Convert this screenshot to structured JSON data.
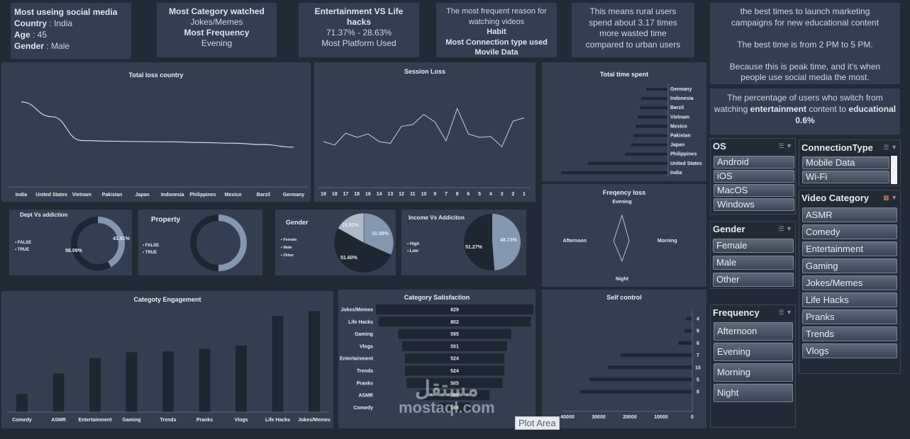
{
  "kpis": {
    "k1": {
      "l1": "Most  useing social media",
      "l2a": "Country",
      "l2b": ": India",
      "l3a": "Age",
      "l3b": ": 45",
      "l4a": "Gender",
      "l4b": ": Male"
    },
    "k2": {
      "l1": "Most Category watched",
      "l2": "Jokes/Memes",
      "l3": "Most Frequency",
      "l4": "Evening"
    },
    "k3": {
      "l1": "Entertainment VS Life",
      "l2": "hacks",
      "l3": "71.37% - 28.63%",
      "l4": "Most Platform Used"
    },
    "k4": {
      "l1": "The most frequent reason for",
      "l2": "watching videos",
      "l3": "Habit",
      "l4": "Most Connection type used",
      "l5": "Movile Data"
    },
    "k5": {
      "l1": "This means rural users",
      "l2": "spend about 3.17 times",
      "l3": "more wasted time",
      "l4": "compared to urban users"
    },
    "k6": {
      "l1": "the best times to launch marketing",
      "l2": "campaigns for new educational content",
      "l3": "The best time is from 2 PM to 5 PM.",
      "l4": "Because this is peak time, and it's when",
      "l5": "people use social media the most."
    },
    "k7": {
      "l1": "The percentage of users who switch from",
      "l2a": "watching",
      "l2b": "entertainment",
      "l2c": "content to",
      "l2d": "educational",
      "l3": "0.6%"
    }
  },
  "charts": {
    "loss_country": {
      "title": "Total loss country",
      "type": "line",
      "categories": [
        "India",
        "United States",
        "Vietnam",
        "Pakistan",
        "Japan",
        "Indonesia",
        "Philippines",
        "Mexico",
        "Barzil",
        "Germany"
      ],
      "values": [
        100,
        78,
        42,
        41,
        40.5,
        40,
        39,
        38,
        36,
        32
      ]
    },
    "session_loss": {
      "title": "Session Loss",
      "type": "line",
      "categories": [
        "19",
        "18",
        "17",
        "18",
        "16",
        "14",
        "13",
        "12",
        "11",
        "10",
        "9",
        "7",
        "8",
        "6",
        "5",
        "4",
        "3",
        "2",
        "1"
      ],
      "values": [
        40,
        36,
        50,
        45,
        49,
        40,
        38,
        58,
        60,
        72,
        63,
        41,
        79,
        49,
        45,
        46,
        34,
        64,
        68
      ]
    },
    "time_spent": {
      "title": "Total time spent",
      "type": "bar",
      "categories": [
        "Germany",
        "Indonesia",
        "Barzil",
        "Vietnam",
        "Mexico",
        "Pakistan",
        "Japan",
        "Philippines",
        "United States",
        "India"
      ],
      "values": [
        20,
        25,
        26,
        28,
        30,
        32,
        34,
        40,
        75,
        100
      ]
    },
    "freq_loss": {
      "title": "Freqency loss",
      "type": "radar",
      "categories": [
        "Evening",
        "Morning",
        "Night",
        "Afternoon"
      ],
      "values": [
        100,
        28,
        80,
        33
      ]
    },
    "dept": {
      "title": "Dept Vs addiction",
      "type": "pie",
      "legend": [
        "FALSE",
        "TRUE"
      ],
      "values": [
        41.91,
        58.09
      ],
      "labels": [
        "41.91%",
        "58.09%"
      ]
    },
    "property": {
      "title": "Property",
      "type": "pie",
      "legend": [
        "FALSE",
        "TRUE"
      ],
      "values": [
        50,
        50
      ]
    },
    "gender": {
      "title": "Gender",
      "type": "pie",
      "legend": [
        "Female",
        "Male",
        "Other"
      ],
      "values": [
        31.58,
        51.6,
        16.82
      ],
      "labels": [
        "31.58%",
        "51.60%",
        "16.82%"
      ]
    },
    "income": {
      "title": "Income Vs Addiciton",
      "type": "pie",
      "legend": [
        "High",
        "Low"
      ],
      "values": [
        48.73,
        51.27
      ],
      "labels": [
        "48.73%",
        "51.27%"
      ]
    },
    "cat_engagement": {
      "title": "Categoty Engagement",
      "type": "bar",
      "categories": [
        "Comedy",
        "ASMR",
        "Entertainment",
        "Gaming",
        "Trends",
        "Pranks",
        "Vlogs",
        "Life Hacks",
        "Jokes/Memes"
      ],
      "values": [
        22,
        47,
        66,
        73,
        74,
        77,
        81,
        117,
        123
      ]
    },
    "cat_satisfaction": {
      "title": "Category Satisfaction",
      "type": "bar",
      "categories": [
        "Jokes/Memes",
        "Life Hacks",
        "Gaming",
        "Vlogs",
        "Entertainment",
        "Trends",
        "Pranks",
        "ASMR",
        "Comedy"
      ],
      "values": [
        829,
        802,
        595,
        551,
        524,
        524,
        505,
        368,
        166
      ],
      "labels": [
        "829",
        "802",
        "595",
        "551",
        "524",
        "524",
        "505",
        "368",
        "166"
      ]
    },
    "self_control": {
      "title": "Self control",
      "type": "bar",
      "categories": [
        "4",
        "9",
        "6",
        "7",
        "10",
        "5",
        "8"
      ],
      "values": [
        2000,
        2500,
        4500,
        23000,
        27000,
        33000,
        36000
      ],
      "ticks": [
        "40000",
        "30000",
        "20000",
        "10000",
        "0"
      ]
    }
  },
  "slicers": {
    "os": {
      "title": "OS",
      "items": [
        "Android",
        "iOS",
        "MacOS",
        "Windows"
      ]
    },
    "conn": {
      "title": "ConnectionType",
      "items": [
        "Mobile Data",
        "Wi-Fi"
      ]
    },
    "gender": {
      "title": "Gender",
      "items": [
        "Female",
        "Male",
        "Other"
      ]
    },
    "video": {
      "title": "Video Category",
      "items": [
        "ASMR",
        "Comedy",
        "Entertainment",
        "Gaming",
        "Jokes/Memes",
        "Life Hacks",
        "Pranks",
        "Trends",
        "Vlogs"
      ]
    },
    "freq": {
      "title": "Frequency",
      "items": [
        "Afternoon",
        "Evening",
        "Morning",
        "Night"
      ]
    }
  },
  "watermark": {
    "ar": "مستقل",
    "en": "mostaql.com"
  },
  "tooltip": "Plot Area",
  "colors": {
    "bg": "#222a35",
    "panel": "#333f50",
    "dark": "#1e2632",
    "light": "#8496b0",
    "mid": "#adb9ca"
  }
}
